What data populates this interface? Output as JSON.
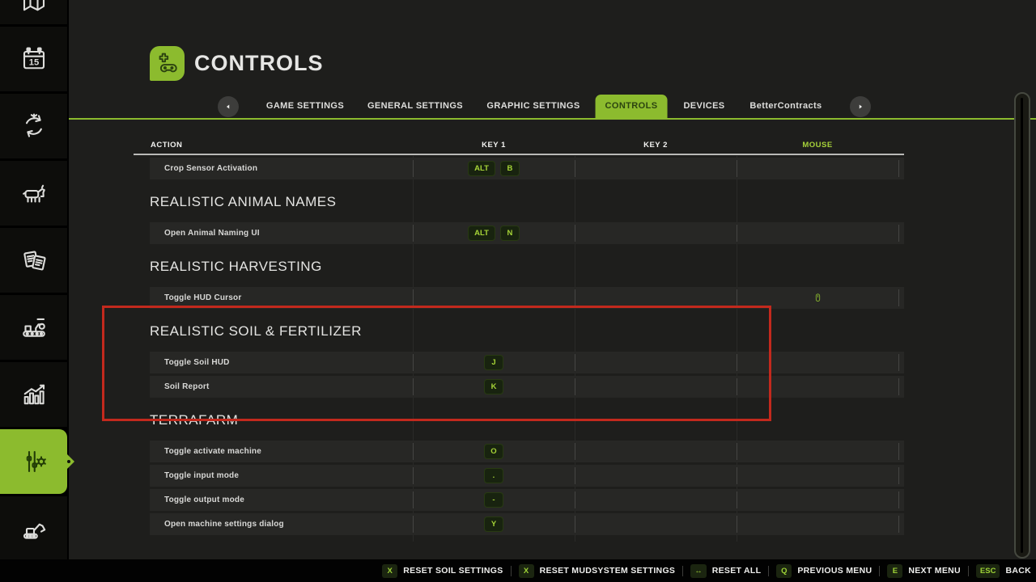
{
  "colors": {
    "accent_green": "#8cbb2e",
    "highlight_red": "#c3291d",
    "key_text_green": "#a6d437"
  },
  "header": {
    "title": "CONTROLS",
    "icon": "gamepad-icon"
  },
  "tabs": {
    "items": [
      {
        "label": "GAME SETTINGS",
        "active": false
      },
      {
        "label": "GENERAL SETTINGS",
        "active": false
      },
      {
        "label": "GRAPHIC SETTINGS",
        "active": false
      },
      {
        "label": "CONTROLS",
        "active": true
      },
      {
        "label": "DEVICES",
        "active": false
      },
      {
        "label": "BetterContracts",
        "active": false
      }
    ],
    "prev_arrow_icon": "chevron-left-icon",
    "next_arrow_icon": "chevron-right-icon"
  },
  "table": {
    "columns": [
      "ACTION",
      "KEY 1",
      "KEY 2",
      "MOUSE"
    ],
    "sections": [
      {
        "heading": "",
        "highlighted": false,
        "rows": [
          {
            "action": "Crop Sensor Activation",
            "key1": [
              "ALT",
              "B"
            ],
            "key2": [],
            "mouse": false
          }
        ]
      },
      {
        "heading": "REALISTIC ANIMAL NAMES",
        "highlighted": false,
        "rows": [
          {
            "action": "Open Animal Naming UI",
            "key1": [
              "ALT",
              "N"
            ],
            "key2": [],
            "mouse": false
          }
        ]
      },
      {
        "heading": "REALISTIC HARVESTING",
        "highlighted": false,
        "rows": [
          {
            "action": "Toggle HUD Cursor",
            "key1": [],
            "key2": [],
            "mouse": true
          }
        ]
      },
      {
        "heading": "REALISTIC SOIL & FERTILIZER",
        "highlighted": true,
        "rows": [
          {
            "action": "Toggle Soil HUD",
            "key1": [
              "J"
            ],
            "key2": [],
            "mouse": false
          },
          {
            "action": "Soil Report",
            "key1": [
              "K"
            ],
            "key2": [],
            "mouse": false
          }
        ]
      },
      {
        "heading": "TERRAFARM",
        "highlighted": false,
        "rows": [
          {
            "action": "Toggle activate machine",
            "key1": [
              "O"
            ],
            "key2": [],
            "mouse": false
          },
          {
            "action": "Toggle input mode",
            "key1": [
              "."
            ],
            "key2": [],
            "mouse": false
          },
          {
            "action": "Toggle output mode",
            "key1": [
              "-"
            ],
            "key2": [],
            "mouse": false
          },
          {
            "action": "Open machine settings dialog",
            "key1": [
              "Y"
            ],
            "key2": [],
            "mouse": false
          }
        ]
      }
    ]
  },
  "sidebar": {
    "calendar_day": "15",
    "items": [
      {
        "name": "map",
        "active": false
      },
      {
        "name": "calendar",
        "active": false
      },
      {
        "name": "crop-rotation",
        "active": false
      },
      {
        "name": "animals",
        "active": false
      },
      {
        "name": "contracts",
        "active": false
      },
      {
        "name": "production",
        "active": false
      },
      {
        "name": "statistics",
        "active": false
      },
      {
        "name": "settings",
        "active": true
      },
      {
        "name": "construction",
        "active": false
      }
    ]
  },
  "footer": {
    "items": [
      {
        "key": "X",
        "label": "RESET SOIL SETTINGS"
      },
      {
        "key": "X",
        "label": "RESET MUDSYSTEM SETTINGS"
      },
      {
        "key": "↔",
        "label": "RESET ALL"
      },
      {
        "key": "Q",
        "label": "PREVIOUS MENU"
      },
      {
        "key": "E",
        "label": "NEXT MENU"
      },
      {
        "key": "ESC",
        "label": "BACK"
      }
    ]
  }
}
